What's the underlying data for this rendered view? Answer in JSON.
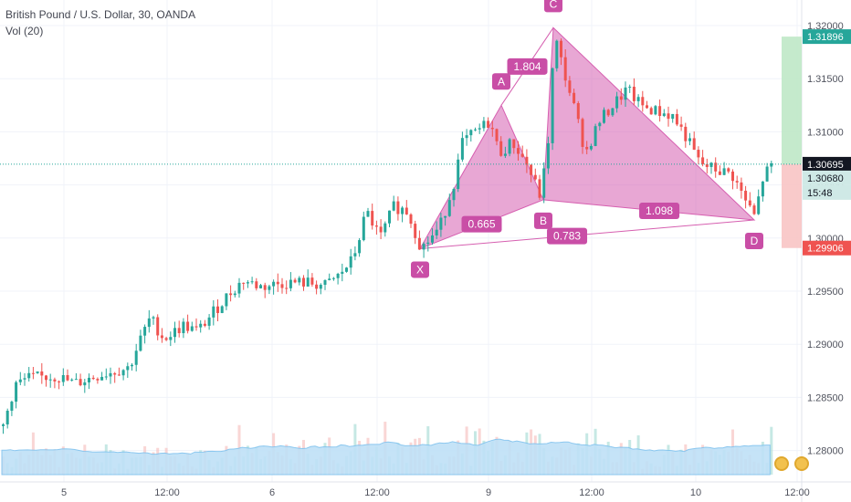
{
  "header": {
    "title": "British Pound / U.S. Dollar, 30, OANDA",
    "indicator": "Vol (20)"
  },
  "chart_data": {
    "type": "candlestick",
    "price_axis": {
      "ticks": [
        "1.32000",
        "1.31500",
        "1.31000",
        "1.30500",
        "1.30000",
        "1.29500",
        "1.29000",
        "1.28500",
        "1.28000"
      ],
      "ylim": [
        1.2775,
        1.3215
      ]
    },
    "time_axis": {
      "ticks": [
        "5",
        "12:00",
        "6",
        "12:00",
        "9",
        "12:00",
        "10",
        "12:00"
      ]
    },
    "price_tags": [
      {
        "value": "1.31896",
        "color": "#26a69a",
        "text_color": "#ffffff"
      },
      {
        "value": "1.30695",
        "color": "#131722",
        "text_color": "#ffffff"
      },
      {
        "value": "1.30680",
        "color": "#cfe9e6",
        "text_color": "#131722"
      },
      {
        "value": "15:48",
        "color": "#cfe9e6",
        "text_color": "#131722"
      },
      {
        "value": "1.29906",
        "color": "#ef5350",
        "text_color": "#ffffff"
      }
    ],
    "last_price": 1.30695,
    "harmonic_pattern": {
      "points": [
        {
          "label": "X",
          "price": 1.299
        },
        {
          "label": "A",
          "price": 1.3125
        },
        {
          "label": "B",
          "price": 1.3036
        },
        {
          "label": "C",
          "price": 1.3198
        },
        {
          "label": "D",
          "price": 1.3017
        }
      ],
      "ratios": [
        "0.665",
        "1.804",
        "1.098",
        "0.783"
      ],
      "color": "#d65fb0"
    },
    "target_zone": {
      "profit_top": 1.31896,
      "entry": 1.30695,
      "stop": 1.29906
    },
    "colors": {
      "up": "#26a69a",
      "down": "#ef5350",
      "volume_ma": "#8ec9f0"
    }
  },
  "badges": {
    "flag1": "us-flag-icon",
    "flag2": "us-flag-icon"
  }
}
